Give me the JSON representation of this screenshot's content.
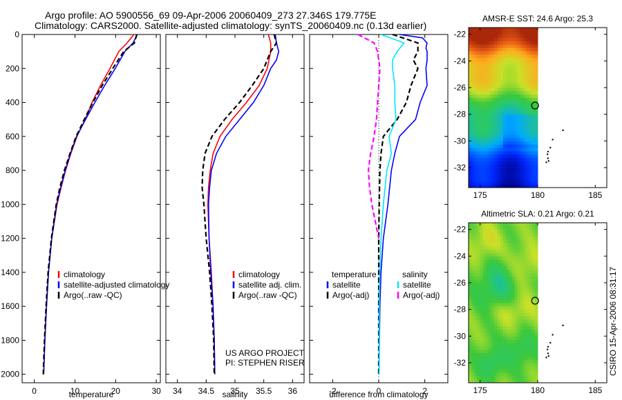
{
  "title_line1": "Argo profile: AO 5900556_69 09-Apr-2006 20060409_273 27.346S 179.775E",
  "title_line2": "Climatology: CARS2000. Satellite-adjusted climatology: synTS_20060409.nc (0.13d earlier)",
  "side_label": "CSIRO 15-Apr-2006 08:31:17",
  "credit_line1": "US ARGO PROJECT",
  "credit_line2": "PI: STEPHEN RISER",
  "colors": {
    "climatology": "#ff0000",
    "satellite": "#0000ff",
    "argo": "#000000",
    "sal_satellite": "#00e5ff",
    "sal_argo": "#ff00ff"
  },
  "chart_data": [
    {
      "type": "line",
      "xlabel": "temperature",
      "xlim": [
        -3,
        31
      ],
      "ylim": [
        2050,
        0
      ],
      "xticks": [
        0,
        10,
        20,
        30
      ],
      "yticks": [
        0,
        200,
        400,
        600,
        800,
        1000,
        1200,
        1400,
        1600,
        1800,
        2000
      ],
      "legend": [
        "climatology",
        "satellite-adjusted climatology",
        "Argo(..raw -QC)"
      ],
      "series": [
        {
          "name": "climatology",
          "color": "#ff0000",
          "depth": [
            0,
            50,
            100,
            200,
            300,
            400,
            500,
            600,
            700,
            800,
            900,
            1000,
            1200,
            1400,
            1600,
            1800,
            2000
          ],
          "values": [
            24.5,
            22.8,
            20.8,
            18.6,
            16.3,
            14.2,
            12.5,
            10.5,
            9.0,
            7.7,
            6.6,
            5.6,
            4.3,
            3.5,
            3.0,
            2.6,
            2.3
          ]
        },
        {
          "name": "satellite-adjusted climatology",
          "color": "#0000ff",
          "depth": [
            0,
            50,
            100,
            200,
            300,
            400,
            500,
            600,
            700,
            800,
            900,
            1000,
            1200,
            1400,
            1600,
            1800,
            2000
          ],
          "values": [
            25.3,
            24.3,
            22.3,
            19.9,
            17.3,
            14.9,
            12.6,
            10.4,
            8.9,
            7.6,
            6.5,
            5.5,
            4.3,
            3.5,
            3.0,
            2.6,
            2.3
          ]
        },
        {
          "name": "Argo(..raw -QC)",
          "color": "#000000",
          "dash": true,
          "depth": [
            0,
            50,
            100,
            200,
            300,
            400,
            500,
            600,
            700,
            800,
            900,
            1000,
            1200,
            1400,
            1600,
            1800,
            2000
          ],
          "values": [
            25.2,
            24.6,
            22.0,
            19.3,
            16.7,
            14.4,
            12.3,
            10.3,
            8.8,
            7.4,
            6.3,
            5.4,
            4.2,
            3.4,
            2.9,
            2.5,
            2.2
          ]
        }
      ]
    },
    {
      "type": "line",
      "xlabel": "salinity",
      "xlim": [
        33.8,
        36.2
      ],
      "ylim": [
        2050,
        0
      ],
      "xticks": [
        34,
        34.5,
        35,
        35.5,
        36
      ],
      "legend": [
        "climatology",
        "satellite adj. clim.",
        "Argo(..raw -QC)"
      ],
      "series": [
        {
          "name": "climatology",
          "color": "#ff0000",
          "depth": [
            0,
            50,
            100,
            200,
            300,
            400,
            500,
            600,
            700,
            800,
            900,
            1000,
            1200,
            1400,
            1600,
            1800,
            2000
          ],
          "values": [
            35.58,
            35.62,
            35.62,
            35.56,
            35.42,
            35.2,
            34.95,
            34.74,
            34.62,
            34.57,
            34.54,
            34.53,
            34.55,
            34.59,
            34.62,
            34.64,
            34.65
          ]
        },
        {
          "name": "satellite adj. clim.",
          "color": "#0000ff",
          "depth": [
            0,
            50,
            100,
            150,
            200,
            300,
            400,
            500,
            600,
            700,
            800,
            900,
            1000,
            1200,
            1400,
            1600,
            1800,
            2000
          ],
          "values": [
            35.7,
            35.72,
            35.76,
            35.72,
            35.62,
            35.5,
            35.32,
            35.08,
            34.84,
            34.68,
            34.59,
            34.56,
            34.54,
            34.55,
            34.58,
            34.62,
            34.64,
            34.65
          ]
        },
        {
          "name": "Argo(..raw -QC)",
          "color": "#000000",
          "dash": true,
          "depth": [
            0,
            50,
            100,
            200,
            300,
            400,
            500,
            600,
            700,
            800,
            900,
            1000,
            1200,
            1400,
            1600,
            1800,
            2000
          ],
          "values": [
            35.68,
            35.72,
            35.62,
            35.5,
            35.3,
            35.08,
            34.82,
            34.6,
            34.48,
            34.44,
            34.43,
            34.46,
            34.5,
            34.56,
            34.6,
            34.63,
            34.64
          ]
        }
      ]
    },
    {
      "type": "line",
      "xlabel": "difference from climatology",
      "xlim": [
        -3,
        3
      ],
      "ylim": [
        2050,
        0
      ],
      "xticks": [
        -2,
        0,
        2
      ],
      "legend_temperature": [
        "temperature",
        "satellite",
        "Argo(-adj)"
      ],
      "legend_salinity": [
        "salinity",
        "satellite",
        "Argo(-adj)"
      ],
      "series": [
        {
          "name": "temperature satellite",
          "color": "#0000ff",
          "depth": [
            0,
            20,
            50,
            80,
            100,
            150,
            200,
            300,
            400,
            500,
            600,
            700,
            800,
            1000,
            1200,
            1400,
            1600,
            1800,
            2000
          ],
          "values": [
            0.9,
            1.9,
            2.1,
            2.05,
            2.1,
            2.1,
            2.05,
            2.1,
            1.8,
            1.6,
            0.9,
            0.7,
            0.55,
            0.4,
            0.2,
            0.1,
            0.05,
            0.03,
            0.02
          ]
        },
        {
          "name": "temperature Argo(-adj)",
          "color": "#000000",
          "dash": true,
          "depth": [
            0,
            50,
            100,
            150,
            200,
            300,
            400,
            500,
            600,
            700,
            800,
            1000,
            1200,
            1400,
            1600,
            1800,
            2000
          ],
          "values": [
            0.6,
            1.7,
            1.7,
            1.5,
            1.7,
            1.4,
            1.2,
            0.8,
            0.2,
            0.1,
            0.05,
            0.02,
            0.0,
            0.0,
            0.0,
            0.0,
            0.0
          ]
        },
        {
          "name": "salinity satellite",
          "color": "#00e5ff",
          "depth": [
            0,
            50,
            100,
            150,
            200,
            300,
            400,
            500,
            600,
            700,
            800,
            1000,
            1200,
            1400,
            1600,
            1800,
            2000
          ],
          "values": [
            0.1,
            1.1,
            0.8,
            0.6,
            0.6,
            0.7,
            0.7,
            0.75,
            0.45,
            0.55,
            0.35,
            0.2,
            0.1,
            0.05,
            0.02,
            0.02,
            0.02
          ]
        },
        {
          "name": "salinity Argo(-adj)",
          "color": "#ff00ff",
          "dash": true,
          "depth": [
            0,
            50,
            100,
            200,
            300,
            400,
            500,
            600,
            700,
            800,
            900,
            1000,
            1100,
            1200
          ],
          "values": [
            -0.9,
            -0.2,
            -0.05,
            0.05,
            0.0,
            -0.05,
            -0.1,
            -0.2,
            -0.35,
            -0.45,
            -0.4,
            -0.3,
            -0.15,
            0.0
          ]
        }
      ]
    }
  ],
  "maps": [
    {
      "title": "AMSR-E SST: 24.6 Argo: 25.3",
      "field": "sst",
      "xticks": [
        175,
        180,
        185
      ],
      "yticks": [
        -22,
        -24,
        -26,
        -28,
        -30,
        -32
      ],
      "xlim": [
        174,
        186
      ],
      "ylim": [
        -33.5,
        -21.5
      ],
      "data_lon_max": 180,
      "marker": {
        "lon": 179.775,
        "lat": -27.346
      }
    },
    {
      "title": "Altimetric SLA: 0.21 Argo: 0.21",
      "field": "sla",
      "xticks": [
        175,
        180,
        185
      ],
      "yticks": [
        -22,
        -24,
        -26,
        -28,
        -30,
        -32
      ],
      "xlim": [
        174,
        186
      ],
      "ylim": [
        -33.5,
        -21.5
      ],
      "data_lon_max": 180,
      "marker": {
        "lon": 179.775,
        "lat": -27.346
      }
    }
  ],
  "islands": [
    {
      "lon": 182.2,
      "lat": -29.2
    },
    {
      "lon": 181.3,
      "lat": -29.9
    },
    {
      "lon": 181.1,
      "lat": -30.5
    },
    {
      "lon": 180.9,
      "lat": -30.8
    },
    {
      "lon": 180.85,
      "lat": -31.0
    },
    {
      "lon": 180.9,
      "lat": -31.3
    },
    {
      "lon": 180.95,
      "lat": -31.5
    },
    {
      "lon": 180.75,
      "lat": -31.6
    }
  ]
}
